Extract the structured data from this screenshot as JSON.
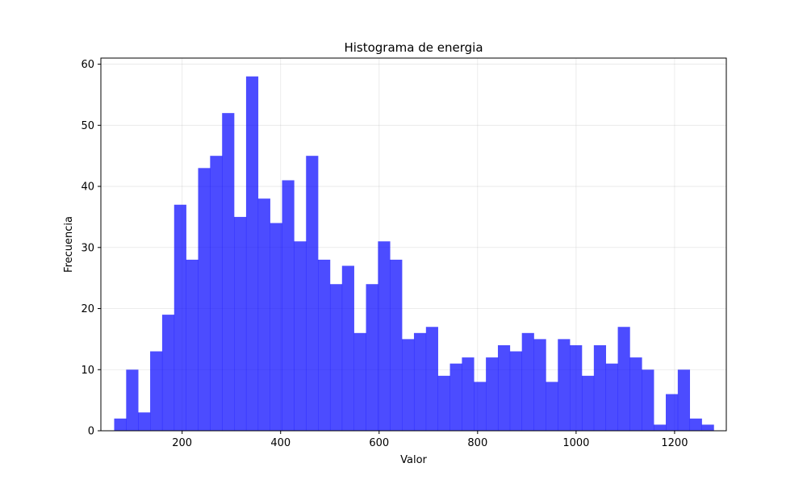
{
  "chart_data": {
    "type": "bar",
    "title": "Histograma de energia",
    "xlabel": "Valor",
    "ylabel": "Frecuencia",
    "xlim": [
      35,
      1305
    ],
    "ylim": [
      0,
      61
    ],
    "x_ticks": [
      200,
      400,
      600,
      800,
      1000,
      1200
    ],
    "y_ticks": [
      0,
      10,
      20,
      30,
      40,
      50,
      60
    ],
    "grid": true,
    "bar_color": "#0000ff",
    "bar_opacity": 0.7,
    "bin_start": 62,
    "bin_width": 24.35,
    "values": [
      2,
      10,
      3,
      13,
      19,
      37,
      28,
      43,
      45,
      52,
      35,
      58,
      38,
      34,
      41,
      31,
      45,
      28,
      24,
      27,
      16,
      24,
      31,
      28,
      15,
      16,
      17,
      9,
      11,
      12,
      8,
      12,
      14,
      13,
      16,
      15,
      8,
      15,
      14,
      9,
      14,
      11,
      17,
      12,
      10,
      1,
      6,
      10,
      2,
      1
    ]
  }
}
